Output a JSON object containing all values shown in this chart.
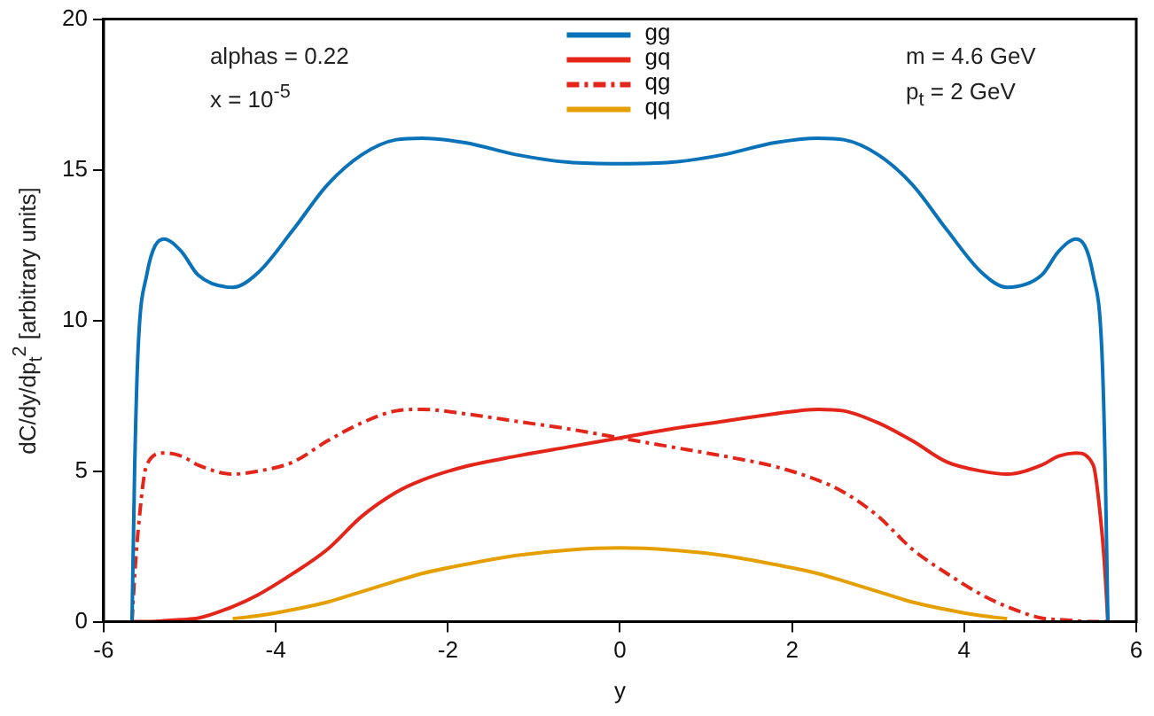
{
  "chart_data": {
    "type": "line",
    "xlabel": "y",
    "ylabel": "dC/dy/dp$_{t}$$^{2}$  [arbitrary units]",
    "annotations": [
      "alphas = 0.22",
      "x = 10$^{-5}$",
      "m = 4.6 GeV",
      "p$_{t}$ = 2 GeV"
    ],
    "xlim": [
      -6,
      6
    ],
    "xticks": [
      -6,
      -4,
      -2,
      0,
      2,
      4,
      6
    ],
    "ylim": [
      0,
      20
    ],
    "yticks": [
      0,
      5,
      10,
      15,
      20
    ],
    "grid": false,
    "legend": "top",
    "marker": "none",
    "x": [
      -5.67,
      -5.64,
      -5.6,
      -5.5,
      -5.3,
      -5.1,
      -4.9,
      -4.5,
      -4.2,
      -3.8,
      -3.4,
      -3,
      -2.6,
      -2.3,
      -1.8,
      -1.2,
      -0.6,
      0,
      0.6,
      1.2,
      1.8,
      2.3,
      2.6,
      3,
      3.4,
      3.8,
      4.2,
      4.5,
      4.9,
      5.1,
      5.3,
      5.5,
      5.6,
      5.64,
      5.67
    ],
    "series": [
      {
        "name": "gg",
        "color": "#0a72b8",
        "line_style": "solid",
        "values": [
          0,
          5,
          9,
          11.5,
          12.7,
          12.3,
          11.5,
          11.1,
          11.6,
          13,
          14.5,
          15.5,
          16,
          16.05,
          15.9,
          15.5,
          15.25,
          15.2,
          15.25,
          15.5,
          15.9,
          16.05,
          16,
          15.5,
          14.5,
          13,
          11.6,
          11.1,
          11.5,
          12.3,
          12.7,
          11.5,
          9,
          5,
          0
        ]
      },
      {
        "name": "gq",
        "color": "#e3251a",
        "line_style": "solid",
        "values": [
          0,
          0,
          0,
          0,
          0.03,
          0.07,
          0.12,
          0.5,
          0.9,
          1.6,
          2.4,
          3.5,
          4.3,
          4.7,
          5.15,
          5.5,
          5.8,
          6.1,
          6.4,
          6.65,
          6.9,
          7.05,
          7.0,
          6.6,
          6.0,
          5.3,
          5.0,
          4.9,
          5.2,
          5.5,
          5.6,
          5.2,
          3,
          1.5,
          0
        ]
      },
      {
        "name": "qg",
        "color": "#e3251a",
        "line_style": "dashed",
        "values": [
          0,
          1.5,
          3,
          5.2,
          5.6,
          5.5,
          5.2,
          4.9,
          5.0,
          5.3,
          6.0,
          6.6,
          7.0,
          7.05,
          6.9,
          6.65,
          6.4,
          6.1,
          5.8,
          5.5,
          5.15,
          4.7,
          4.3,
          3.5,
          2.4,
          1.6,
          0.9,
          0.5,
          0.12,
          0.07,
          0.03,
          0,
          0,
          0,
          0
        ]
      },
      {
        "name": "qq",
        "color": "#e69f00",
        "line_style": "solid",
        "x": [
          -4.5,
          -4.2,
          -3.8,
          -3.4,
          -3,
          -2.6,
          -2.3,
          -1.8,
          -1.2,
          -0.6,
          0,
          0.6,
          1.2,
          1.8,
          2.3,
          2.6,
          3,
          3.4,
          3.8,
          4.2,
          4.5
        ],
        "values": [
          0.1,
          0.2,
          0.4,
          0.65,
          1.0,
          1.35,
          1.6,
          1.9,
          2.2,
          2.38,
          2.45,
          2.38,
          2.2,
          1.9,
          1.6,
          1.35,
          1.0,
          0.65,
          0.4,
          0.2,
          0.1
        ]
      }
    ]
  }
}
